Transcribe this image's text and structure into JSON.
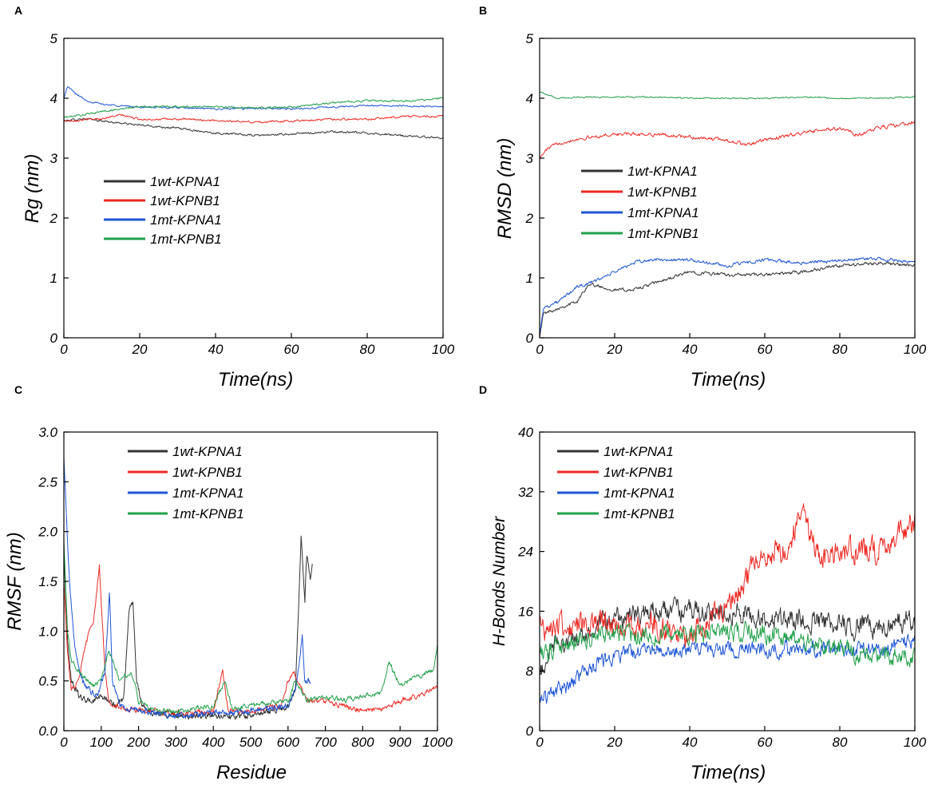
{
  "colors": {
    "1wt-KPNA1": "#333333",
    "1wt-KPNB1": "#ee2a24",
    "1mt-KPNA1": "#1f56d6",
    "1mt-KPNB1": "#22a04a"
  },
  "chart_data": [
    {
      "id": "A",
      "panel_label": "A",
      "type": "line",
      "xlabel": "Time(ns)",
      "ylabel": "Rg (nm)",
      "xlim": [
        0,
        100
      ],
      "ylim": [
        0,
        5
      ],
      "xticks": [
        0,
        20,
        40,
        60,
        80,
        100
      ],
      "yticks": [
        0,
        1,
        2,
        3,
        4,
        5
      ],
      "ytick_labels": [
        "0",
        "1",
        "2",
        "3",
        "4",
        "5"
      ],
      "legend": [
        "1wt-KPNA1",
        "1wt-KPNB1",
        "1mt-KPNA1",
        "1mt-KPNB1"
      ],
      "legend_position": "lower-left",
      "series": [
        {
          "name": "1wt-KPNA1",
          "x": [
            0,
            5,
            10,
            20,
            30,
            40,
            50,
            60,
            70,
            80,
            90,
            100
          ],
          "values": [
            3.62,
            3.66,
            3.62,
            3.55,
            3.5,
            3.42,
            3.38,
            3.4,
            3.44,
            3.42,
            3.37,
            3.34
          ],
          "noise": 0.03
        },
        {
          "name": "1wt-KPNB1",
          "x": [
            0,
            5,
            10,
            15,
            20,
            30,
            40,
            50,
            60,
            70,
            80,
            90,
            100
          ],
          "values": [
            3.62,
            3.64,
            3.66,
            3.72,
            3.65,
            3.65,
            3.63,
            3.6,
            3.62,
            3.65,
            3.65,
            3.7,
            3.7
          ],
          "noise": 0.03
        },
        {
          "name": "1mt-KPNA1",
          "x": [
            0,
            1,
            3,
            6,
            10,
            20,
            30,
            40,
            50,
            60,
            70,
            80,
            90,
            100
          ],
          "values": [
            4.0,
            4.2,
            4.08,
            3.96,
            3.9,
            3.85,
            3.84,
            3.82,
            3.83,
            3.82,
            3.85,
            3.88,
            3.87,
            3.86
          ],
          "noise": 0.025
        },
        {
          "name": "1mt-KPNB1",
          "x": [
            0,
            5,
            10,
            20,
            30,
            40,
            50,
            60,
            70,
            80,
            90,
            100
          ],
          "values": [
            3.68,
            3.72,
            3.78,
            3.86,
            3.86,
            3.86,
            3.84,
            3.85,
            3.92,
            3.96,
            3.95,
            4.0
          ],
          "noise": 0.03
        }
      ]
    },
    {
      "id": "B",
      "panel_label": "B",
      "type": "line",
      "xlabel": "Time(ns)",
      "ylabel": "RMSD (nm)",
      "xlim": [
        0,
        100
      ],
      "ylim": [
        0,
        5
      ],
      "xticks": [
        0,
        20,
        40,
        60,
        80,
        100
      ],
      "yticks": [
        0,
        1,
        2,
        3,
        4,
        5
      ],
      "ytick_labels": [
        "0",
        "1",
        "2",
        "3",
        "4",
        "5"
      ],
      "legend": [
        "1wt-KPNA1",
        "1wt-KPNB1",
        "1mt-KPNA1",
        "1mt-KPNB1"
      ],
      "legend_position": "center-left",
      "series": [
        {
          "name": "1wt-KPNA1",
          "x": [
            0,
            1,
            5,
            10,
            13,
            20,
            25,
            30,
            40,
            50,
            60,
            70,
            80,
            90,
            100
          ],
          "values": [
            0.05,
            0.4,
            0.5,
            0.6,
            0.9,
            0.8,
            0.8,
            0.9,
            1.1,
            1.05,
            1.05,
            1.1,
            1.2,
            1.25,
            1.2
          ],
          "noise": 0.05
        },
        {
          "name": "1wt-KPNB1",
          "x": [
            0,
            2,
            5,
            10,
            20,
            30,
            40,
            50,
            55,
            60,
            70,
            80,
            85,
            90,
            100
          ],
          "values": [
            3.0,
            3.15,
            3.25,
            3.32,
            3.4,
            3.4,
            3.35,
            3.3,
            3.22,
            3.3,
            3.42,
            3.5,
            3.38,
            3.5,
            3.6
          ],
          "noise": 0.05
        },
        {
          "name": "1mt-KPNA1",
          "x": [
            0,
            1,
            5,
            10,
            15,
            20,
            25,
            30,
            35,
            40,
            50,
            60,
            70,
            80,
            90,
            100
          ],
          "values": [
            0.05,
            0.5,
            0.6,
            0.85,
            0.95,
            1.1,
            1.25,
            1.3,
            1.3,
            1.3,
            1.2,
            1.3,
            1.25,
            1.3,
            1.32,
            1.25
          ],
          "noise": 0.05
        },
        {
          "name": "1mt-KPNB1",
          "x": [
            0,
            2,
            5,
            10,
            20,
            30,
            40,
            50,
            60,
            70,
            80,
            90,
            100
          ],
          "values": [
            4.12,
            4.05,
            4.0,
            4.02,
            4.02,
            4.02,
            4.0,
            4.0,
            4.0,
            4.02,
            4.0,
            4.0,
            4.02
          ],
          "noise": 0.02
        }
      ]
    },
    {
      "id": "C",
      "panel_label": "C",
      "type": "line",
      "xlabel": "Residue",
      "ylabel": "RMSF (nm)",
      "xlim": [
        0,
        1000
      ],
      "ylim": [
        0,
        3
      ],
      "xticks": [
        0,
        100,
        200,
        300,
        400,
        500,
        600,
        700,
        800,
        900,
        1000
      ],
      "yticks": [
        0,
        0.5,
        1,
        1.5,
        2,
        2.5,
        3
      ],
      "ytick_labels": [
        "0.0",
        "0.5",
        "1.0",
        "1.5",
        "2.0",
        "2.5",
        "3.0"
      ],
      "legend": [
        "1wt-KPNA1",
        "1wt-KPNB1",
        "1mt-KPNA1",
        "1mt-KPNB1"
      ],
      "legend_position": "top-center",
      "series": [
        {
          "name": "1wt-KPNA1",
          "x": [
            0,
            10,
            20,
            40,
            60,
            80,
            100,
            120,
            140,
            160,
            175,
            185,
            195,
            210,
            240,
            300,
            400,
            500,
            560,
            600,
            620,
            635,
            645,
            650,
            660,
            665
          ],
          "values": [
            1.8,
            0.9,
            0.5,
            0.35,
            0.3,
            0.3,
            0.35,
            0.3,
            0.25,
            0.3,
            1.25,
            1.28,
            0.5,
            0.25,
            0.18,
            0.15,
            0.15,
            0.15,
            0.2,
            0.25,
            0.4,
            1.95,
            1.3,
            1.8,
            1.5,
            1.7
          ],
          "noise": 0.05
        },
        {
          "name": "1wt-KPNB1",
          "x": [
            0,
            10,
            20,
            40,
            60,
            80,
            95,
            110,
            120,
            140,
            200,
            300,
            400,
            425,
            440,
            500,
            580,
            600,
            615,
            650,
            700,
            750,
            800,
            850,
            900,
            950,
            1000
          ],
          "values": [
            1.5,
            0.8,
            0.4,
            0.5,
            0.9,
            1.1,
            1.65,
            0.6,
            0.3,
            0.25,
            0.2,
            0.18,
            0.18,
            0.6,
            0.2,
            0.2,
            0.25,
            0.5,
            0.6,
            0.3,
            0.3,
            0.25,
            0.2,
            0.2,
            0.3,
            0.35,
            0.45
          ],
          "noise": 0.05
        },
        {
          "name": "1mt-KPNA1",
          "x": [
            0,
            5,
            15,
            30,
            50,
            70,
            90,
            110,
            122,
            130,
            150,
            200,
            300,
            400,
            500,
            600,
            620,
            638,
            645,
            660
          ],
          "values": [
            2.75,
            2.3,
            1.5,
            0.8,
            0.5,
            0.4,
            0.35,
            0.6,
            1.4,
            0.5,
            0.25,
            0.2,
            0.15,
            0.18,
            0.2,
            0.25,
            0.4,
            0.95,
            0.5,
            0.5
          ],
          "noise": 0.05
        },
        {
          "name": "1mt-KPNB1",
          "x": [
            0,
            10,
            20,
            50,
            80,
            100,
            120,
            150,
            180,
            200,
            250,
            300,
            400,
            430,
            450,
            500,
            600,
            620,
            650,
            700,
            750,
            800,
            850,
            870,
            900,
            950,
            990,
            1000
          ],
          "values": [
            1.9,
            1.0,
            0.7,
            0.55,
            0.45,
            0.5,
            0.8,
            0.5,
            0.6,
            0.3,
            0.2,
            0.2,
            0.25,
            0.5,
            0.22,
            0.25,
            0.3,
            0.5,
            0.3,
            0.35,
            0.3,
            0.35,
            0.4,
            0.7,
            0.45,
            0.55,
            0.6,
            0.85
          ],
          "noise": 0.05
        }
      ]
    },
    {
      "id": "D",
      "panel_label": "D",
      "type": "line",
      "xlabel": "Time(ns)",
      "ylabel": "H-Bonds Number",
      "xlim": [
        0,
        100
      ],
      "ylim": [
        0,
        40
      ],
      "xticks": [
        0,
        20,
        40,
        60,
        80,
        100
      ],
      "yticks": [
        0,
        8,
        16,
        24,
        32,
        40
      ],
      "ytick_labels": [
        "0",
        "8",
        "16",
        "24",
        "32",
        "40"
      ],
      "legend": [
        "1wt-KPNA1",
        "1wt-KPNB1",
        "1mt-KPNA1",
        "1mt-KPNB1"
      ],
      "legend_position": "top-left",
      "series": [
        {
          "name": "1wt-KPNA1",
          "x": [
            0,
            2,
            5,
            10,
            20,
            30,
            40,
            50,
            60,
            70,
            80,
            90,
            100
          ],
          "values": [
            7,
            10,
            12,
            12,
            15,
            16,
            16,
            16,
            15,
            15,
            14,
            14,
            15
          ],
          "noise": 2.5
        },
        {
          "name": "1wt-KPNB1",
          "x": [
            0,
            5,
            10,
            20,
            30,
            40,
            48,
            55,
            60,
            65,
            70,
            75,
            80,
            85,
            90,
            95,
            100
          ],
          "values": [
            14,
            14,
            14,
            14,
            14,
            13,
            16,
            20,
            24,
            24,
            29,
            23,
            24,
            24,
            24,
            26,
            28
          ],
          "noise": 3
        },
        {
          "name": "1mt-KPNA1",
          "x": [
            0,
            3,
            8,
            12,
            20,
            30,
            40,
            50,
            60,
            70,
            80,
            90,
            100
          ],
          "values": [
            4,
            5,
            6,
            8,
            10,
            11,
            11,
            11,
            11,
            11,
            11,
            11,
            12
          ],
          "noise": 1.8
        },
        {
          "name": "1mt-KPNB1",
          "x": [
            0,
            5,
            10,
            20,
            30,
            40,
            50,
            60,
            70,
            80,
            90,
            100
          ],
          "values": [
            10,
            11,
            12,
            13,
            13,
            13,
            13,
            13,
            12,
            11,
            10,
            10
          ],
          "noise": 2.2
        }
      ]
    }
  ]
}
